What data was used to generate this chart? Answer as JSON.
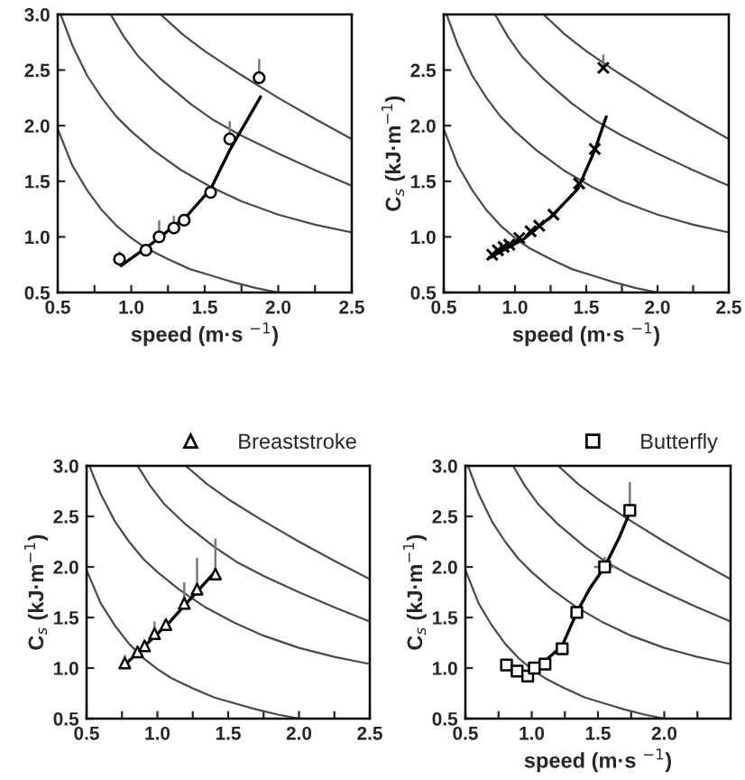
{
  "chart_data": [
    {
      "type": "scatter",
      "xlabel": "speed (m·s $^{−1}$)",
      "xlim": [
        0.5,
        2.5
      ],
      "ylim": [
        0.5,
        3.0
      ],
      "xticks": [
        0.5,
        {
          "value": 0.75,
          "label": null
        },
        {
          "value": 1,
          "label": "1.0"
        },
        {
          "value": 1.25,
          "label": null
        },
        1.5,
        {
          "value": 1.75,
          "label": null
        },
        {
          "value": 2,
          "label": "2.0"
        },
        {
          "value": 2.25,
          "label": null
        },
        2.5
      ],
      "yticks": [
        0.5,
        {
          "value": 1,
          "label": "1.0"
        },
        1.5,
        {
          "value": 2,
          "label": "2.0"
        },
        2.5,
        {
          "value": 3,
          "label": "3.0"
        }
      ],
      "series": [
        {
          "type": "line",
          "color": "#4a4a4a",
          "x": [
            0.5,
            0.6,
            0.7,
            0.8,
            0.9,
            1.0,
            1.1,
            1.25,
            1.4,
            1.55,
            1.7,
            1.85,
            2.0
          ],
          "values": [
            1.97,
            1.64,
            1.42,
            1.24,
            1.1,
            0.99,
            0.9,
            0.8,
            0.71,
            0.65,
            0.59,
            0.54,
            0.5
          ]
        },
        {
          "type": "line",
          "color": "#4a4a4a",
          "x": [
            0.52,
            0.6,
            0.7,
            0.8,
            0.9,
            1.0,
            1.15,
            1.34,
            1.54,
            1.75,
            2.0,
            2.25,
            2.5
          ],
          "values": [
            3.0,
            2.72,
            2.45,
            2.25,
            2.08,
            1.95,
            1.78,
            1.6,
            1.45,
            1.32,
            1.2,
            1.11,
            1.04
          ]
        },
        {
          "type": "line",
          "color": "#4a4a4a",
          "x": [
            0.86,
            0.95,
            1.05,
            1.2,
            1.4,
            1.56,
            1.75,
            2.0,
            2.25,
            2.5
          ],
          "values": [
            3.0,
            2.8,
            2.62,
            2.42,
            2.2,
            2.05,
            1.91,
            1.75,
            1.6,
            1.46
          ]
        },
        {
          "type": "line",
          "color": "#4a4a4a",
          "x": [
            1.2,
            1.35,
            1.5,
            1.73,
            2.0,
            2.25,
            2.5
          ],
          "values": [
            3.0,
            2.82,
            2.67,
            2.47,
            2.25,
            2.06,
            1.88
          ]
        },
        {
          "type": "line",
          "color": "#000000",
          "x": [
            0.93,
            1.14,
            1.38,
            1.54,
            1.67,
            1.88
          ],
          "values": [
            0.74,
            0.94,
            1.19,
            1.43,
            1.78,
            2.26
          ]
        },
        {
          "marker": "circle",
          "color": "#000000",
          "x": [
            0.92,
            1.1,
            1.19,
            1.29,
            1.36,
            1.54,
            1.67,
            1.87
          ],
          "values": [
            0.8,
            0.88,
            1.0,
            1.08,
            1.15,
            1.4,
            1.88,
            2.43
          ],
          "errors": [
            [
              0.8,
              0.87
            ],
            [
              0.88,
              0.93
            ],
            [
              1.0,
              1.15
            ],
            [
              1.08,
              1.19
            ],
            null,
            null,
            [
              1.88,
              2.04
            ],
            [
              2.43,
              2.6
            ]
          ]
        }
      ]
    },
    {
      "type": "scatter",
      "xlabel": "speed (m·s $^{−1}$)",
      "ylabel": "C$_{s}$ (kJ·m$^{−1}$)",
      "xlim": [
        0.5,
        2.5
      ],
      "ylim": [
        0.5,
        3.0
      ],
      "xticks": [
        0.5,
        {
          "value": 0.75,
          "label": null
        },
        {
          "value": 1,
          "label": "1.0"
        },
        {
          "value": 1.25,
          "label": null
        },
        1.5,
        {
          "value": 1.75,
          "label": null
        },
        {
          "value": 2,
          "label": "2.0"
        },
        {
          "value": 2.25,
          "label": null
        },
        2.5
      ],
      "yticks": [
        0.5,
        {
          "value": 1,
          "label": "1.0"
        },
        1.5,
        {
          "value": 2,
          "label": "2.0"
        },
        2.5
      ],
      "series": [
        {
          "type": "line",
          "color": "#4a4a4a",
          "x": [
            0.5,
            0.6,
            0.7,
            0.8,
            0.9,
            1.0,
            1.1,
            1.25,
            1.4,
            1.55,
            1.7,
            1.85,
            2.0
          ],
          "values": [
            1.97,
            1.64,
            1.42,
            1.24,
            1.1,
            0.99,
            0.9,
            0.8,
            0.71,
            0.65,
            0.59,
            0.54,
            0.5
          ]
        },
        {
          "type": "line",
          "color": "#4a4a4a",
          "x": [
            0.52,
            0.6,
            0.7,
            0.8,
            0.9,
            1.0,
            1.15,
            1.34,
            1.54,
            1.75,
            2.0,
            2.25,
            2.5
          ],
          "values": [
            3.0,
            2.72,
            2.45,
            2.25,
            2.08,
            1.95,
            1.78,
            1.6,
            1.45,
            1.32,
            1.2,
            1.11,
            1.04
          ]
        },
        {
          "type": "line",
          "color": "#4a4a4a",
          "x": [
            0.86,
            0.95,
            1.05,
            1.2,
            1.4,
            1.56,
            1.75,
            2.0,
            2.25,
            2.5
          ],
          "values": [
            3.0,
            2.8,
            2.62,
            2.42,
            2.2,
            2.05,
            1.91,
            1.75,
            1.6,
            1.46
          ]
        },
        {
          "type": "line",
          "color": "#4a4a4a",
          "x": [
            1.2,
            1.35,
            1.5,
            1.73,
            2.0,
            2.25,
            2.5
          ],
          "values": [
            3.0,
            2.82,
            2.67,
            2.47,
            2.25,
            2.06,
            1.88
          ]
        },
        {
          "type": "line",
          "color": "#000000",
          "x": [
            0.82,
            1.06,
            1.26,
            1.44,
            1.56,
            1.64
          ],
          "values": [
            0.81,
            0.98,
            1.19,
            1.43,
            1.78,
            2.08
          ]
        },
        {
          "marker": "cross",
          "color": "#000000",
          "x": [
            0.84,
            0.88,
            0.92,
            0.96,
            1.03,
            1.11,
            1.17,
            1.27,
            1.45,
            1.56,
            1.62
          ],
          "values": [
            0.84,
            0.88,
            0.91,
            0.93,
            0.99,
            1.05,
            1.1,
            1.2,
            1.48,
            1.79,
            2.52
          ],
          "errors": [
            null,
            null,
            null,
            null,
            null,
            null,
            null,
            null,
            null,
            null,
            [
              2.52,
              2.64
            ]
          ]
        }
      ]
    },
    {
      "type": "scatter",
      "ylabel": "C$_{s}$ (kJ·m$^{−1}$)",
      "xlim": [
        0.5,
        2.5
      ],
      "ylim": [
        0.5,
        3.0
      ],
      "legend": "top right",
      "xticks": [
        0.5,
        {
          "value": 0.75,
          "label": null
        },
        {
          "value": 1,
          "label": "1.0"
        },
        {
          "value": 1.25,
          "label": null
        },
        1.5,
        {
          "value": 1.75,
          "label": null
        },
        {
          "value": 2,
          "label": "2.0"
        },
        {
          "value": 2.25,
          "label": null
        },
        2.5
      ],
      "yticks": [
        0.5,
        {
          "value": 1,
          "label": "1.0"
        },
        1.5,
        {
          "value": 2,
          "label": "2.0"
        },
        2.5,
        {
          "value": 3,
          "label": "3.0"
        }
      ],
      "series": [
        {
          "type": "line",
          "color": "#4a4a4a",
          "x": [
            0.5,
            0.6,
            0.7,
            0.8,
            0.9,
            1.0,
            1.1,
            1.25,
            1.4,
            1.55,
            1.7,
            1.85,
            2.0
          ],
          "values": [
            1.97,
            1.64,
            1.42,
            1.24,
            1.1,
            0.99,
            0.9,
            0.8,
            0.71,
            0.65,
            0.59,
            0.54,
            0.5
          ]
        },
        {
          "type": "line",
          "color": "#4a4a4a",
          "x": [
            0.52,
            0.6,
            0.7,
            0.8,
            0.9,
            1.0,
            1.15,
            1.34,
            1.54,
            1.75,
            2.0,
            2.25,
            2.5
          ],
          "values": [
            3.0,
            2.72,
            2.45,
            2.25,
            2.08,
            1.95,
            1.78,
            1.6,
            1.45,
            1.32,
            1.2,
            1.11,
            1.04
          ]
        },
        {
          "type": "line",
          "color": "#4a4a4a",
          "x": [
            0.86,
            0.95,
            1.05,
            1.2,
            1.4,
            1.56,
            1.75,
            2.0,
            2.25,
            2.5
          ],
          "values": [
            3.0,
            2.8,
            2.62,
            2.42,
            2.2,
            2.05,
            1.91,
            1.75,
            1.6,
            1.46
          ]
        },
        {
          "type": "line",
          "color": "#4a4a4a",
          "x": [
            1.2,
            1.35,
            1.5,
            1.73,
            2.0,
            2.25,
            2.5
          ],
          "values": [
            3.0,
            2.82,
            2.67,
            2.47,
            2.25,
            2.06,
            1.88
          ]
        },
        {
          "type": "line",
          "color": "#000000",
          "x": [
            0.77,
            1.09,
            1.4
          ],
          "values": [
            1.03,
            1.46,
            1.94
          ]
        },
        {
          "name": "Breaststroke",
          "marker": "triangle",
          "color": "#000000",
          "x": [
            0.77,
            0.86,
            0.91,
            0.98,
            1.06,
            1.19,
            1.28,
            1.41
          ],
          "values": [
            1.05,
            1.16,
            1.22,
            1.34,
            1.43,
            1.64,
            1.78,
            1.93
          ],
          "errors": [
            [
              1.05,
              1.13
            ],
            null,
            null,
            [
              1.34,
              1.46
            ],
            null,
            [
              1.64,
              1.85
            ],
            [
              1.78,
              2.09
            ],
            [
              1.93,
              2.28
            ]
          ]
        }
      ]
    },
    {
      "type": "scatter",
      "xlabel": "speed (m·s $^{−1}$)",
      "ylabel": "C$_{s}$ (kJ·m$^{−1}$)",
      "xlim": [
        0.5,
        2.5
      ],
      "ylim": [
        0.5,
        3.0
      ],
      "legend": "top right",
      "xticks": [
        0.5,
        {
          "value": 0.75,
          "label": null
        },
        {
          "value": 1,
          "label": "1.0"
        },
        {
          "value": 1.25,
          "label": null
        },
        1.5,
        {
          "value": 1.75,
          "label": null
        },
        {
          "value": 2,
          "label": "2.0"
        },
        {
          "value": 2.25,
          "label": null
        }
      ],
      "yticks": [
        0.5,
        {
          "value": 1,
          "label": "1.0"
        },
        1.5,
        {
          "value": 2,
          "label": "2.0"
        },
        2.5,
        {
          "value": 3,
          "label": "3.0"
        }
      ],
      "series": [
        {
          "type": "line",
          "color": "#4a4a4a",
          "x": [
            0.5,
            0.6,
            0.7,
            0.8,
            0.9,
            1.0,
            1.1,
            1.25,
            1.4,
            1.55,
            1.7,
            1.85,
            2.0
          ],
          "values": [
            1.97,
            1.64,
            1.42,
            1.24,
            1.1,
            0.99,
            0.9,
            0.8,
            0.71,
            0.65,
            0.59,
            0.54,
            0.5
          ]
        },
        {
          "type": "line",
          "color": "#4a4a4a",
          "x": [
            0.52,
            0.6,
            0.7,
            0.8,
            0.9,
            1.0,
            1.15,
            1.34,
            1.54,
            1.75,
            2.0,
            2.25,
            2.5
          ],
          "values": [
            3.0,
            2.72,
            2.45,
            2.25,
            2.08,
            1.95,
            1.78,
            1.6,
            1.45,
            1.32,
            1.2,
            1.11,
            1.04
          ]
        },
        {
          "type": "line",
          "color": "#4a4a4a",
          "x": [
            0.86,
            0.95,
            1.05,
            1.2,
            1.4,
            1.56,
            1.75,
            2.0,
            2.25,
            2.5
          ],
          "values": [
            3.0,
            2.8,
            2.62,
            2.42,
            2.2,
            2.05,
            1.91,
            1.75,
            1.6,
            1.46
          ]
        },
        {
          "type": "line",
          "color": "#4a4a4a",
          "x": [
            1.2,
            1.35,
            1.5,
            1.73,
            2.0,
            2.25,
            2.5
          ],
          "values": [
            3.0,
            2.82,
            2.67,
            2.47,
            2.25,
            2.06,
            1.88
          ]
        },
        {
          "type": "line",
          "color": "#000000",
          "x": [
            0.98,
            1.1,
            1.23,
            1.34,
            1.44,
            1.55,
            1.66,
            1.75
          ],
          "values": [
            0.93,
            1.07,
            1.22,
            1.55,
            1.79,
            2.0,
            2.29,
            2.57
          ]
        },
        {
          "name": "Butterfly",
          "marker": "square",
          "color": "#000000",
          "x": [
            0.81,
            0.89,
            0.97,
            1.02,
            1.1,
            1.23,
            1.34,
            1.55,
            1.74
          ],
          "values": [
            1.03,
            0.97,
            0.92,
            1.0,
            1.04,
            1.19,
            1.55,
            2.0,
            2.56
          ],
          "errors": [
            null,
            null,
            null,
            null,
            null,
            null,
            null,
            [
              2.0,
              2.1
            ],
            [
              2.56,
              2.84
            ]
          ],
          "xerrors": [
            null,
            null,
            null,
            null,
            null,
            null,
            null,
            0.08,
            null
          ]
        }
      ]
    }
  ]
}
